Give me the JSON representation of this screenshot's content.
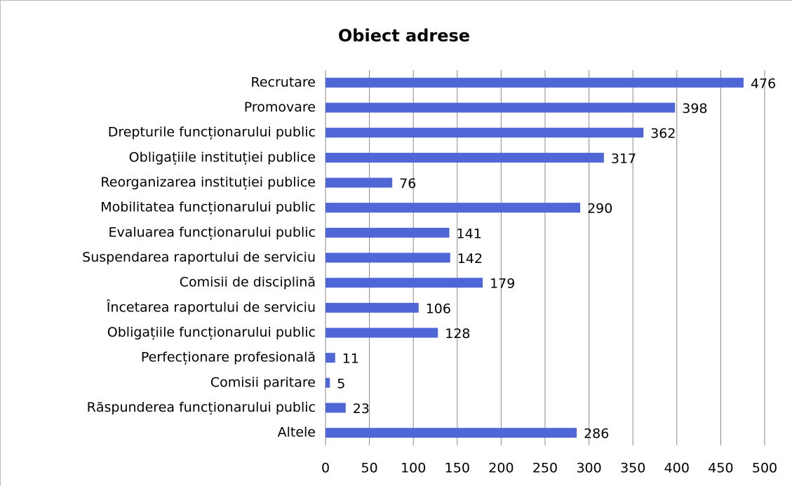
{
  "chart_data": {
    "type": "bar",
    "orientation": "horizontal",
    "title": "Obiect adrese",
    "categories": [
      "Recrutare",
      "Promovare",
      "Drepturile funcționarului public",
      "Obligațiile instituției publice",
      "Reorganizarea instituției publice",
      "Mobilitatea funcționarului public",
      "Evaluarea funcționarului public",
      "Suspendarea raportului de serviciu",
      "Comisii de disciplină",
      "Încetarea raportului de serviciu",
      "Obligațiile funcționarului public",
      "Perfecționare profesională",
      "Comisii paritare",
      "Răspunderea funcționarului public",
      "Altele"
    ],
    "values": [
      476,
      398,
      362,
      317,
      76,
      290,
      141,
      142,
      179,
      106,
      128,
      11,
      5,
      23,
      286
    ],
    "color": "#4f66d6",
    "xlim": [
      0,
      500
    ],
    "xticks": [
      0,
      50,
      100,
      150,
      200,
      250,
      300,
      350,
      400,
      450,
      500
    ],
    "grid": true
  }
}
